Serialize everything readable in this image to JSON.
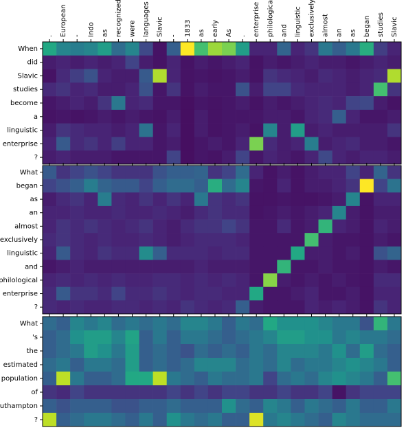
{
  "chart_data": {
    "type": "heatmap",
    "colormap": "viridis",
    "vlim": [
      0,
      1
    ],
    "x_labels": [
      ".",
      "European",
      "-",
      "Indo",
      "as",
      "recognized",
      "were",
      "languages",
      "Slavic",
      "-",
      "1833",
      "as",
      "early",
      "As",
      ".",
      "enterprise",
      "philological",
      "and",
      "linguistic",
      "exclusively",
      "almost",
      "an",
      "as",
      "began",
      "studies",
      "Slavic"
    ],
    "panels": [
      {
        "rows": [
          "When",
          "did",
          "Slavic",
          "studies",
          "become",
          "a",
          "linguistic",
          "enterprise",
          "?"
        ],
        "values": [
          [
            0.6,
            0.45,
            0.42,
            0.45,
            0.55,
            0.35,
            0.45,
            0.22,
            0.05,
            0.3,
            1.0,
            0.7,
            0.85,
            0.8,
            0.55,
            0.1,
            0.1,
            0.32,
            0.1,
            0.15,
            0.4,
            0.3,
            0.4,
            0.62,
            0.18,
            0.1
          ],
          [
            0.08,
            0.1,
            0.08,
            0.1,
            0.08,
            0.1,
            0.2,
            0.08,
            0.05,
            0.1,
            0.05,
            0.08,
            0.06,
            0.08,
            0.1,
            0.05,
            0.08,
            0.06,
            0.08,
            0.1,
            0.08,
            0.08,
            0.06,
            0.08,
            0.1,
            0.08
          ],
          [
            0.05,
            0.12,
            0.18,
            0.25,
            0.1,
            0.08,
            0.08,
            0.28,
            0.88,
            0.1,
            0.05,
            0.06,
            0.05,
            0.06,
            0.08,
            0.05,
            0.15,
            0.12,
            0.1,
            0.08,
            0.12,
            0.1,
            0.08,
            0.1,
            0.12,
            0.88
          ],
          [
            0.12,
            0.15,
            0.1,
            0.12,
            0.08,
            0.08,
            0.1,
            0.25,
            0.06,
            0.15,
            0.05,
            0.08,
            0.06,
            0.06,
            0.25,
            0.08,
            0.2,
            0.2,
            0.12,
            0.1,
            0.1,
            0.1,
            0.08,
            0.1,
            0.7,
            0.15
          ],
          [
            0.06,
            0.08,
            0.1,
            0.08,
            0.15,
            0.4,
            0.1,
            0.12,
            0.06,
            0.06,
            0.04,
            0.06,
            0.05,
            0.06,
            0.08,
            0.05,
            0.08,
            0.06,
            0.08,
            0.1,
            0.12,
            0.1,
            0.2,
            0.22,
            0.08,
            0.05
          ],
          [
            0.05,
            0.06,
            0.05,
            0.06,
            0.08,
            0.06,
            0.08,
            0.06,
            0.05,
            0.08,
            0.04,
            0.08,
            0.05,
            0.06,
            0.06,
            0.06,
            0.08,
            0.08,
            0.06,
            0.1,
            0.12,
            0.3,
            0.1,
            0.06,
            0.06,
            0.08
          ],
          [
            0.08,
            0.15,
            0.12,
            0.1,
            0.1,
            0.08,
            0.1,
            0.38,
            0.06,
            0.1,
            0.04,
            0.08,
            0.05,
            0.06,
            0.08,
            0.05,
            0.45,
            0.08,
            0.55,
            0.08,
            0.1,
            0.08,
            0.08,
            0.08,
            0.08,
            0.15
          ],
          [
            0.1,
            0.28,
            0.12,
            0.15,
            0.1,
            0.18,
            0.1,
            0.1,
            0.06,
            0.08,
            0.04,
            0.06,
            0.08,
            0.06,
            0.1,
            0.8,
            0.12,
            0.08,
            0.1,
            0.42,
            0.08,
            0.1,
            0.12,
            0.08,
            0.08,
            0.06
          ],
          [
            0.08,
            0.1,
            0.08,
            0.08,
            0.08,
            0.06,
            0.06,
            0.06,
            0.06,
            0.2,
            0.04,
            0.06,
            0.05,
            0.08,
            0.2,
            0.06,
            0.1,
            0.08,
            0.06,
            0.1,
            0.22,
            0.1,
            0.08,
            0.1,
            0.1,
            0.08
          ]
        ]
      },
      {
        "rows": [
          "What",
          "began",
          "as",
          "an",
          "almost",
          "exclusively",
          "linguistic",
          "and",
          "philological",
          "enterprise",
          "?"
        ],
        "values": [
          [
            0.28,
            0.15,
            0.2,
            0.25,
            0.2,
            0.15,
            0.15,
            0.15,
            0.25,
            0.3,
            0.3,
            0.32,
            0.15,
            0.2,
            0.35,
            0.1,
            0.05,
            0.08,
            0.05,
            0.08,
            0.1,
            0.1,
            0.2,
            0.1,
            0.32,
            0.15
          ],
          [
            0.2,
            0.25,
            0.3,
            0.42,
            0.32,
            0.28,
            0.28,
            0.2,
            0.3,
            0.35,
            0.35,
            0.3,
            0.62,
            0.35,
            0.45,
            0.06,
            0.05,
            0.1,
            0.05,
            0.08,
            0.08,
            0.1,
            0.15,
            1.0,
            0.2,
            0.38
          ],
          [
            0.08,
            0.12,
            0.15,
            0.1,
            0.42,
            0.12,
            0.1,
            0.15,
            0.1,
            0.15,
            0.1,
            0.4,
            0.15,
            0.12,
            0.15,
            0.05,
            0.05,
            0.06,
            0.05,
            0.05,
            0.06,
            0.08,
            0.45,
            0.05,
            0.1,
            0.1
          ],
          [
            0.1,
            0.1,
            0.12,
            0.1,
            0.1,
            0.12,
            0.1,
            0.1,
            0.12,
            0.1,
            0.08,
            0.12,
            0.15,
            0.12,
            0.12,
            0.05,
            0.06,
            0.08,
            0.06,
            0.08,
            0.1,
            0.45,
            0.08,
            0.05,
            0.08,
            0.08
          ],
          [
            0.1,
            0.15,
            0.12,
            0.15,
            0.12,
            0.1,
            0.12,
            0.15,
            0.1,
            0.08,
            0.12,
            0.15,
            0.15,
            0.2,
            0.15,
            0.06,
            0.06,
            0.12,
            0.06,
            0.08,
            0.65,
            0.1,
            0.08,
            0.05,
            0.1,
            0.08
          ],
          [
            0.12,
            0.15,
            0.12,
            0.1,
            0.12,
            0.1,
            0.1,
            0.12,
            0.1,
            0.08,
            0.1,
            0.12,
            0.12,
            0.12,
            0.1,
            0.06,
            0.06,
            0.06,
            0.06,
            0.7,
            0.08,
            0.06,
            0.06,
            0.05,
            0.08,
            0.06
          ],
          [
            0.1,
            0.28,
            0.12,
            0.1,
            0.15,
            0.12,
            0.12,
            0.48,
            0.3,
            0.12,
            0.12,
            0.12,
            0.1,
            0.12,
            0.12,
            0.06,
            0.06,
            0.06,
            0.6,
            0.08,
            0.08,
            0.06,
            0.08,
            0.05,
            0.25,
            0.32
          ],
          [
            0.06,
            0.08,
            0.1,
            0.08,
            0.08,
            0.08,
            0.08,
            0.08,
            0.08,
            0.08,
            0.08,
            0.1,
            0.08,
            0.08,
            0.08,
            0.06,
            0.06,
            0.65,
            0.06,
            0.06,
            0.08,
            0.06,
            0.06,
            0.05,
            0.08,
            0.06
          ],
          [
            0.1,
            0.12,
            0.1,
            0.12,
            0.1,
            0.12,
            0.1,
            0.1,
            0.12,
            0.12,
            0.1,
            0.12,
            0.1,
            0.12,
            0.1,
            0.06,
            0.82,
            0.08,
            0.06,
            0.08,
            0.06,
            0.08,
            0.06,
            0.05,
            0.12,
            0.12
          ],
          [
            0.12,
            0.28,
            0.15,
            0.15,
            0.12,
            0.2,
            0.12,
            0.12,
            0.15,
            0.12,
            0.1,
            0.12,
            0.12,
            0.1,
            0.1,
            0.6,
            0.06,
            0.06,
            0.08,
            0.1,
            0.06,
            0.06,
            0.08,
            0.05,
            0.1,
            0.1
          ],
          [
            0.12,
            0.1,
            0.12,
            0.1,
            0.1,
            0.12,
            0.12,
            0.1,
            0.12,
            0.1,
            0.15,
            0.12,
            0.1,
            0.12,
            0.3,
            0.08,
            0.06,
            0.06,
            0.06,
            0.1,
            0.08,
            0.1,
            0.08,
            0.05,
            0.15,
            0.1
          ]
        ]
      },
      {
        "rows": [
          "What",
          "'s",
          "the",
          "estimated",
          "population",
          "of",
          "Southampton",
          "?"
        ],
        "values": [
          [
            0.35,
            0.3,
            0.45,
            0.4,
            0.45,
            0.35,
            0.4,
            0.35,
            0.4,
            0.35,
            0.45,
            0.45,
            0.4,
            0.3,
            0.4,
            0.35,
            0.6,
            0.5,
            0.5,
            0.5,
            0.45,
            0.4,
            0.4,
            0.25,
            0.65,
            0.4
          ],
          [
            0.3,
            0.35,
            0.5,
            0.55,
            0.55,
            0.45,
            0.58,
            0.3,
            0.4,
            0.3,
            0.4,
            0.4,
            0.35,
            0.3,
            0.35,
            0.4,
            0.45,
            0.55,
            0.55,
            0.5,
            0.5,
            0.4,
            0.45,
            0.4,
            0.4,
            0.35
          ],
          [
            0.3,
            0.35,
            0.4,
            0.55,
            0.5,
            0.4,
            0.55,
            0.3,
            0.35,
            0.3,
            0.25,
            0.35,
            0.3,
            0.35,
            0.3,
            0.4,
            0.35,
            0.45,
            0.45,
            0.45,
            0.4,
            0.5,
            0.35,
            0.55,
            0.35,
            0.3
          ],
          [
            0.35,
            0.4,
            0.3,
            0.4,
            0.4,
            0.35,
            0.55,
            0.3,
            0.35,
            0.3,
            0.35,
            0.45,
            0.45,
            0.45,
            0.35,
            0.4,
            0.35,
            0.45,
            0.35,
            0.4,
            0.4,
            0.45,
            0.5,
            0.45,
            0.4,
            0.3
          ],
          [
            0.3,
            0.9,
            0.4,
            0.3,
            0.3,
            0.35,
            0.6,
            0.6,
            0.9,
            0.4,
            0.35,
            0.3,
            0.4,
            0.35,
            0.35,
            0.4,
            0.2,
            0.35,
            0.4,
            0.35,
            0.45,
            0.5,
            0.45,
            0.4,
            0.3,
            0.7
          ],
          [
            0.15,
            0.12,
            0.2,
            0.15,
            0.15,
            0.15,
            0.15,
            0.15,
            0.15,
            0.2,
            0.15,
            0.2,
            0.15,
            0.2,
            0.2,
            0.15,
            0.15,
            0.2,
            0.15,
            0.15,
            0.2,
            0.05,
            0.15,
            0.2,
            0.2,
            0.2
          ],
          [
            0.3,
            0.25,
            0.3,
            0.3,
            0.3,
            0.25,
            0.25,
            0.3,
            0.3,
            0.35,
            0.3,
            0.3,
            0.3,
            0.5,
            0.35,
            0.3,
            0.45,
            0.4,
            0.3,
            0.4,
            0.35,
            0.3,
            0.4,
            0.3,
            0.3,
            0.4
          ],
          [
            0.9,
            0.3,
            0.35,
            0.4,
            0.4,
            0.35,
            0.3,
            0.4,
            0.3,
            0.5,
            0.4,
            0.35,
            0.4,
            0.3,
            0.3,
            0.95,
            0.4,
            0.45,
            0.4,
            0.35,
            0.3,
            0.45,
            0.4,
            0.35,
            0.35,
            0.35
          ]
        ]
      }
    ]
  }
}
